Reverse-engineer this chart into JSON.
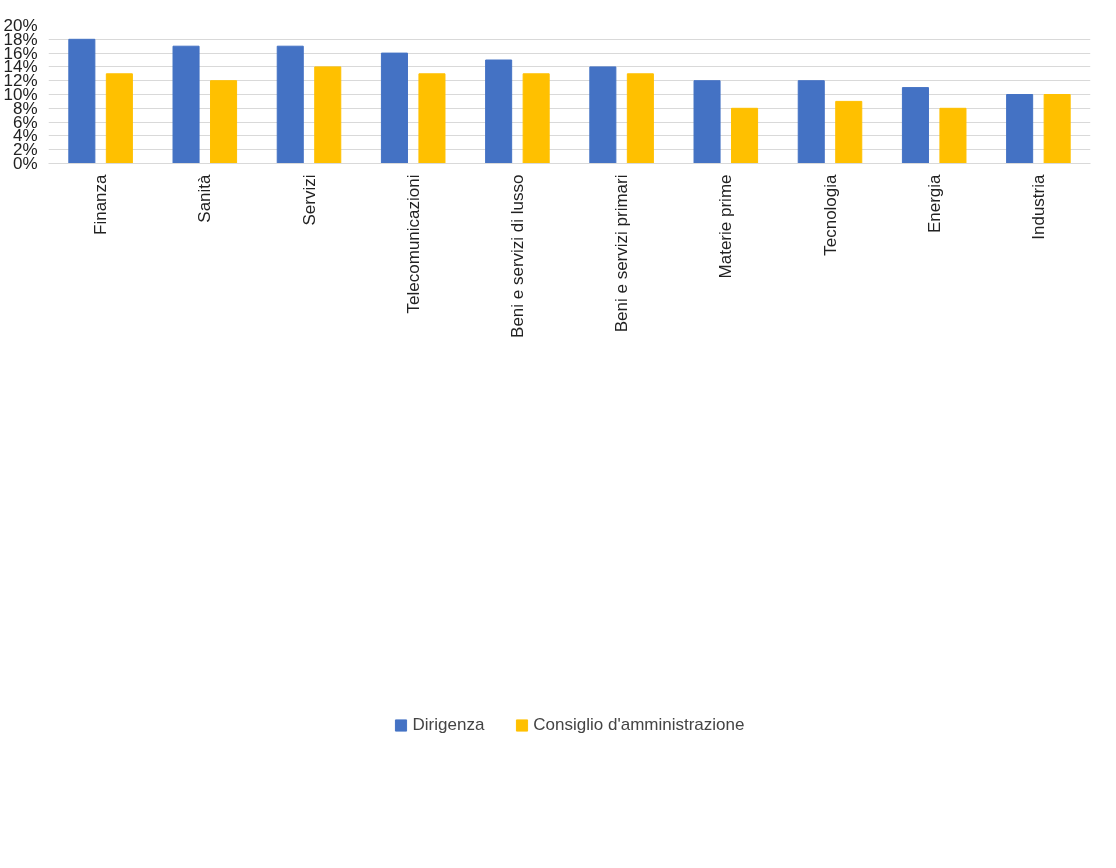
{
  "chart_data": {
    "type": "bar",
    "categories": [
      "Finanza",
      "Sanità",
      "Servizi",
      "Telecomunicazioni",
      "Beni e servizi di lusso",
      "Beni e servizi primari",
      "Materie prime",
      "Tecnologia",
      "Energia",
      "Industria"
    ],
    "series": [
      {
        "name": "Dirigenza",
        "color": "#4472c4",
        "values": [
          18,
          17,
          17,
          16,
          15,
          14,
          12,
          12,
          11,
          10
        ]
      },
      {
        "name": "Consiglio d'amministrazione",
        "color": "#ffc000",
        "values": [
          13,
          12,
          14,
          13,
          13,
          13,
          8,
          9,
          8,
          10
        ]
      }
    ],
    "ylim": [
      0,
      20
    ],
    "yticks": [
      {
        "value": 0,
        "label": "0%"
      },
      {
        "value": 2,
        "label": "2%"
      },
      {
        "value": 4,
        "label": "4%"
      },
      {
        "value": 6,
        "label": "6%"
      },
      {
        "value": 8,
        "label": "8%"
      },
      {
        "value": 10,
        "label": "10%"
      },
      {
        "value": 12,
        "label": "12%"
      },
      {
        "value": 14,
        "label": "14%"
      },
      {
        "value": 16,
        "label": "16%"
      },
      {
        "value": 18,
        "label": "18%"
      },
      {
        "value": 20,
        "label": "20%"
      }
    ],
    "grid": "y",
    "legend": "bottom"
  }
}
